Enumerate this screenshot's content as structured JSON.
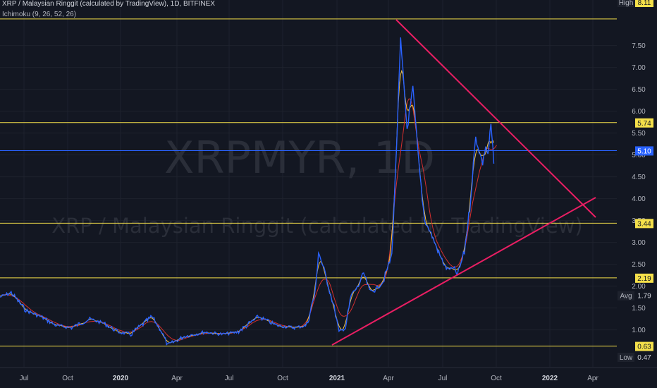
{
  "header": {
    "title": "XRP / Malaysian Ringgit (calculated by TradingView), 1D, BITFINEX",
    "indicator": "Ichimoku (9, 26, 52, 26)"
  },
  "watermark": {
    "symbol": "XRPMYR, 1D",
    "description": "XRP / Malaysian Ringgit (calculated by TradingView)"
  },
  "colors": {
    "background": "#131722",
    "price": "#2962ff",
    "conversion": "#f5c43d",
    "base": "#d32f2f",
    "hline": "#f5e04a",
    "current": "#2962ff",
    "trendline": "#e91e63"
  },
  "chart_data": {
    "type": "line",
    "ylim": [
      0.4,
      8.15
    ],
    "xlabel": "",
    "ylabel": "",
    "y_ticks": [
      "1.00",
      "1.50",
      "2.00",
      "2.50",
      "3.00",
      "3.50",
      "4.00",
      "4.50",
      "5.00",
      "5.50",
      "6.00",
      "6.50",
      "7.00",
      "7.50"
    ],
    "x_ticks": [
      {
        "label": "Jul",
        "bold": false
      },
      {
        "label": "Oct",
        "bold": false
      },
      {
        "label": "2020",
        "bold": true
      },
      {
        "label": "Apr",
        "bold": false
      },
      {
        "label": "Jul",
        "bold": false
      },
      {
        "label": "Oct",
        "bold": false
      },
      {
        "label": "2021",
        "bold": true
      },
      {
        "label": "Apr",
        "bold": false
      },
      {
        "label": "Jul",
        "bold": false
      },
      {
        "label": "Oct",
        "bold": false
      },
      {
        "label": "2022",
        "bold": true
      },
      {
        "label": "Apr",
        "bold": false
      }
    ],
    "price_labels": [
      {
        "tag": "High",
        "value": "8.11"
      },
      {
        "tag": "",
        "value": "5.74"
      },
      {
        "tag": "",
        "value": "5.10"
      },
      {
        "tag": "",
        "value": "3.44"
      },
      {
        "tag": "",
        "value": "2.19"
      },
      {
        "tag": "Avg",
        "value": "1.79"
      },
      {
        "tag": "",
        "value": "0.63"
      },
      {
        "tag": "Low",
        "value": "0.47"
      }
    ],
    "horizontal_lines": [
      8.11,
      5.74,
      3.44,
      2.19,
      0.63
    ],
    "current_price": 5.1,
    "series": [
      {
        "role": "price",
        "x": [
          "2019-06-01",
          "2019-06-20",
          "2019-07-15",
          "2019-08-10",
          "2019-09-05",
          "2019-10-01",
          "2019-11-01",
          "2019-11-25",
          "2019-12-20",
          "2020-01-10",
          "2020-02-15",
          "2020-03-01",
          "2020-03-13",
          "2020-04-10",
          "2020-05-15",
          "2020-06-15",
          "2020-07-10",
          "2020-08-15",
          "2020-09-15",
          "2020-10-15",
          "2020-11-05",
          "2020-11-20",
          "2020-11-25",
          "2020-12-10",
          "2020-12-22",
          "2020-12-30",
          "2021-01-10",
          "2021-01-20",
          "2021-02-01",
          "2021-02-10",
          "2021-02-20",
          "2021-03-01",
          "2021-03-15",
          "2021-03-30",
          "2021-04-05",
          "2021-04-14",
          "2021-04-25",
          "2021-05-05",
          "2021-05-15",
          "2021-05-25",
          "2021-06-05",
          "2021-06-20",
          "2021-07-01",
          "2021-07-15",
          "2021-07-20",
          "2021-08-01",
          "2021-08-10",
          "2021-08-20",
          "2021-09-01",
          "2021-09-06",
          "2021-09-10",
          "2021-09-15",
          "2021-09-20"
        ],
        "y": [
          1.75,
          1.85,
          1.45,
          1.3,
          1.1,
          1.05,
          1.25,
          1.15,
          0.95,
          0.9,
          1.3,
          1.0,
          0.65,
          0.85,
          0.95,
          0.9,
          0.95,
          1.3,
          1.1,
          1.05,
          1.1,
          1.9,
          2.8,
          2.1,
          1.5,
          0.95,
          1.05,
          1.8,
          2.0,
          2.3,
          1.9,
          1.9,
          2.1,
          2.7,
          4.5,
          7.6,
          5.6,
          6.5,
          4.8,
          3.5,
          3.2,
          2.7,
          2.4,
          2.4,
          2.25,
          2.8,
          3.8,
          5.4,
          4.8,
          5.2,
          5.0,
          5.7,
          4.8
        ]
      }
    ]
  }
}
